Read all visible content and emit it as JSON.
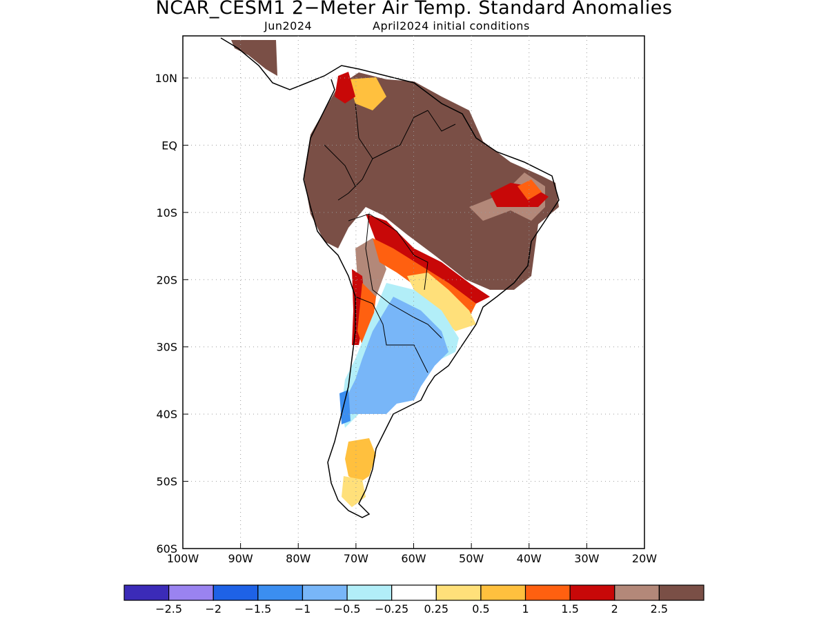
{
  "title": "NCAR_CESM1 2−Meter Air Temp. Standard Anomalies",
  "subtitle_left": "Jun2024",
  "subtitle_right": "April2024 initial conditions",
  "axes": {
    "lat_ticks": [
      "10N",
      "EQ",
      "10S",
      "20S",
      "30S",
      "40S",
      "50S",
      "60S"
    ],
    "lon_ticks": [
      "100W",
      "90W",
      "80W",
      "70W",
      "60W",
      "50W",
      "40W",
      "30W",
      "20W"
    ],
    "grid": "dotted"
  },
  "colorbar": {
    "labels": [
      "−2.5",
      "−2",
      "−1.5",
      "−1",
      "−0.5",
      "−0.25",
      "0.25",
      "0.5",
      "1",
      "1.5",
      "2",
      "2.5"
    ],
    "colors": [
      "#3b2bb8",
      "#9a83f0",
      "#1e62e6",
      "#3b8ef0",
      "#78b6f8",
      "#b2eef8",
      "#ffffff",
      "#ffe07a",
      "#ffc03e",
      "#ff6010",
      "#c80808",
      "#b38879",
      "#7a4f46"
    ]
  },
  "colors": {
    "land_outline": "#000000",
    "grid": "#9a9a9a",
    "background": "#ffffff"
  }
}
